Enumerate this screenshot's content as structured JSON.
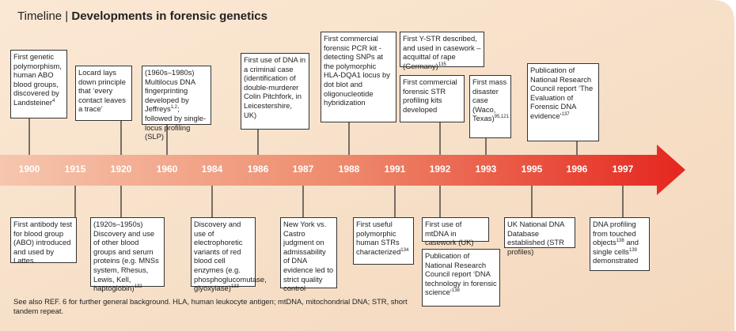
{
  "header": {
    "label": "Timeline",
    "title": "Developments in forensic genetics"
  },
  "years": [
    "1900",
    "1915",
    "1920",
    "1960",
    "1984",
    "1986",
    "1987",
    "1988",
    "1991",
    "1992",
    "1993",
    "1995",
    "1996",
    "1997"
  ],
  "top_events": [
    {
      "parts": [
        {
          "t": "First genetic polymorphism, human ABO blood groups, discovered by Landsteiner"
        },
        {
          "sup": "4"
        }
      ]
    },
    {
      "parts": [
        {
          "t": "Locard lays down principle that ‘every contact leaves a trace’"
        }
      ]
    },
    {
      "parts": [
        {
          "t": "(1960s–1980s) Multilocus DNA fingerprinting developed by Jeffreys"
        },
        {
          "sup": "1,2"
        },
        {
          "t": "; followed by single-locus profiling (SLP)"
        }
      ]
    },
    {
      "parts": [
        {
          "t": "First use of DNA in a criminal case (identification of double-murderer Colin Pitchfork, in Leicestershire, UK)"
        }
      ]
    },
    {
      "parts": [
        {
          "t": "First commercial forensic PCR kit - detecting SNPs at the polymorphic HLA-DQA1 locus by dot blot and oligonucleotide hybridization"
        }
      ]
    },
    {
      "parts": [
        {
          "t": "First Y-STR described, and used in casework – acquittal of rape (Germany)"
        },
        {
          "sup": "135"
        }
      ]
    },
    {
      "parts": [
        {
          "t": "First commercial forensic STR profiling kits developed"
        }
      ]
    },
    {
      "parts": [
        {
          "t": "First mass disaster case (Waco, Texas)"
        },
        {
          "sup": "95,121"
        }
      ]
    },
    {
      "parts": [
        {
          "t": "Publication of National Research Council report ‘The Evaluation of Forensic DNA evidence’"
        },
        {
          "sup": "137"
        }
      ]
    }
  ],
  "bottom_events": [
    {
      "parts": [
        {
          "t": "First antibody test for blood group (ABO) introduced and used by Lattes"
        }
      ]
    },
    {
      "parts": [
        {
          "t": "(1920s–1950s) Discovery and use of other blood groups and serum proteins (e.g. MNSs system, Rhesus, Lewis, Kell, haptoglobin)"
        },
        {
          "sup": "132"
        }
      ]
    },
    {
      "parts": [
        {
          "t": "Discovery and use of electrophoretic variants of red blood cell enzymes (e.g. phosphoglucomutase, glyoxylase)"
        },
        {
          "sup": "133"
        }
      ]
    },
    {
      "parts": [
        {
          "t": "New York vs. Castro judgment on admissability of DNA evidence led to strict quality control"
        }
      ]
    },
    {
      "parts": [
        {
          "t": "First useful polymorphic human STRs characterized"
        },
        {
          "sup": "134"
        }
      ]
    },
    {
      "parts": [
        {
          "t": "First use of mtDNA in casework (UK)"
        }
      ]
    },
    {
      "parts": [
        {
          "t": "Publication of National Research Council report ‘DNA technology in forensic science’"
        },
        {
          "sup": "138"
        }
      ]
    },
    {
      "parts": [
        {
          "t": "UK National DNA Database established (STR profiles)"
        }
      ]
    },
    {
      "parts": [
        {
          "t": "DNA profiling from touched objects"
        },
        {
          "sup": "138"
        },
        {
          "t": " and single cells"
        },
        {
          "sup": "139"
        },
        {
          "t": " demonstrated"
        }
      ]
    }
  ],
  "footnote": "See also REF. 6 for further general background. HLA, human leukocyte antigen; mtDNA, mitochondrial DNA; STR, short tandem repeat."
}
